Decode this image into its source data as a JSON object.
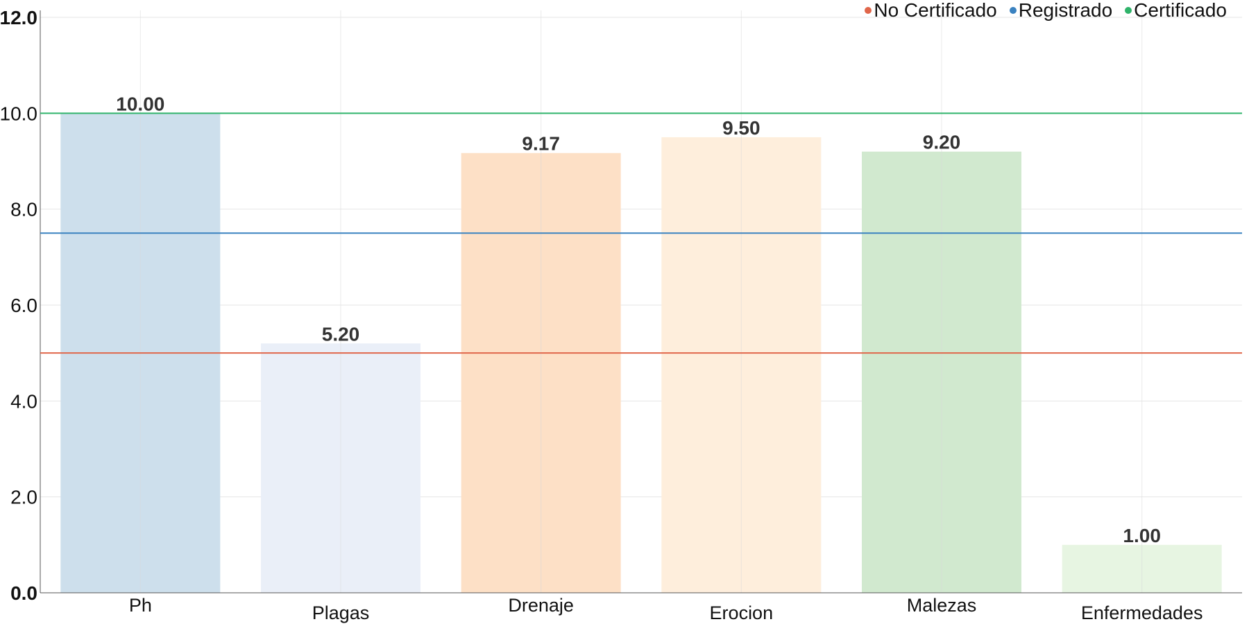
{
  "chart_data": {
    "type": "bar",
    "categories": [
      "Ph",
      "Plagas",
      "Drenaje",
      "Erocion",
      "Malezas",
      "Enfermedades"
    ],
    "values": [
      10.0,
      5.2,
      9.17,
      9.5,
      9.2,
      1.0
    ],
    "data_labels": [
      "10.00",
      "5.20",
      "9.17",
      "9.50",
      "9.20",
      "1.00"
    ],
    "bar_colors": [
      "#cddfec",
      "#eaeff8",
      "#fde0c6",
      "#feeedc",
      "#d1e9cf",
      "#e7f5e2"
    ],
    "ylim": [
      0,
      12
    ],
    "yticks": [
      0,
      2,
      4,
      6,
      8,
      10,
      12
    ],
    "ytick_labels": [
      "0.0",
      "2.0",
      "4.0",
      "6.0",
      "8.0",
      "10.0",
      "12.0"
    ],
    "grid": true,
    "legend_position": "top-right",
    "reference_lines": [
      {
        "name": "No Certificado",
        "value": 5.0,
        "color": "#e0664a"
      },
      {
        "name": "Registrado",
        "value": 7.5,
        "color": "#3a82c0"
      },
      {
        "name": "Certificado",
        "value": 10.0,
        "color": "#2fb36a"
      }
    ]
  },
  "legend": {
    "items": [
      {
        "label": "No Certificado",
        "color": "#e0664a"
      },
      {
        "label": "Registrado",
        "color": "#3a82c0"
      },
      {
        "label": "Certificado",
        "color": "#2fb36a"
      }
    ]
  }
}
